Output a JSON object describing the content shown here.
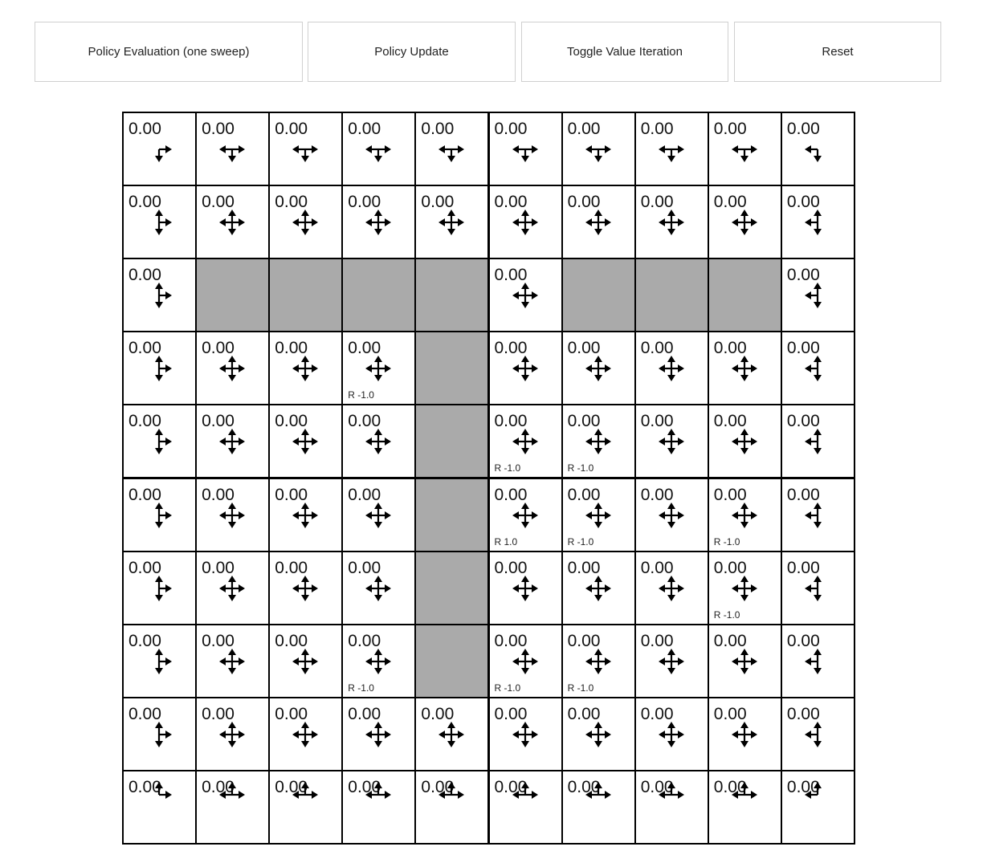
{
  "toolbar": {
    "policy_evaluation": "Policy Evaluation (one sweep)",
    "policy_update": "Policy Update",
    "toggle_value_iteration": "Toggle Value Iteration",
    "reset": "Reset"
  },
  "grid": {
    "rows": 10,
    "cols": 10,
    "wall_color": "#aaaaaa",
    "cells": [
      [
        {
          "v": "0.00"
        },
        {
          "v": "0.00"
        },
        {
          "v": "0.00"
        },
        {
          "v": "0.00"
        },
        {
          "v": "0.00"
        },
        {
          "v": "0.00"
        },
        {
          "v": "0.00"
        },
        {
          "v": "0.00"
        },
        {
          "v": "0.00"
        },
        {
          "v": "0.00"
        }
      ],
      [
        {
          "v": "0.00"
        },
        {
          "v": "0.00"
        },
        {
          "v": "0.00"
        },
        {
          "v": "0.00"
        },
        {
          "v": "0.00"
        },
        {
          "v": "0.00"
        },
        {
          "v": "0.00"
        },
        {
          "v": "0.00"
        },
        {
          "v": "0.00"
        },
        {
          "v": "0.00"
        }
      ],
      [
        {
          "v": "0.00"
        },
        {
          "wall": true
        },
        {
          "wall": true
        },
        {
          "wall": true
        },
        {
          "wall": true
        },
        {
          "v": "0.00"
        },
        {
          "wall": true
        },
        {
          "wall": true
        },
        {
          "wall": true
        },
        {
          "v": "0.00"
        }
      ],
      [
        {
          "v": "0.00"
        },
        {
          "v": "0.00"
        },
        {
          "v": "0.00"
        },
        {
          "v": "0.00",
          "r": "R -1.0"
        },
        {
          "wall": true
        },
        {
          "v": "0.00"
        },
        {
          "v": "0.00"
        },
        {
          "v": "0.00"
        },
        {
          "v": "0.00"
        },
        {
          "v": "0.00"
        }
      ],
      [
        {
          "v": "0.00"
        },
        {
          "v": "0.00"
        },
        {
          "v": "0.00"
        },
        {
          "v": "0.00"
        },
        {
          "wall": true
        },
        {
          "v": "0.00",
          "r": "R -1.0"
        },
        {
          "v": "0.00",
          "r": "R -1.0"
        },
        {
          "v": "0.00"
        },
        {
          "v": "0.00"
        },
        {
          "v": "0.00"
        }
      ],
      [
        {
          "v": "0.00"
        },
        {
          "v": "0.00"
        },
        {
          "v": "0.00"
        },
        {
          "v": "0.00"
        },
        {
          "wall": true
        },
        {
          "v": "0.00",
          "r": "R 1.0"
        },
        {
          "v": "0.00",
          "r": "R -1.0"
        },
        {
          "v": "0.00"
        },
        {
          "v": "0.00",
          "r": "R -1.0"
        },
        {
          "v": "0.00"
        }
      ],
      [
        {
          "v": "0.00"
        },
        {
          "v": "0.00"
        },
        {
          "v": "0.00"
        },
        {
          "v": "0.00"
        },
        {
          "wall": true
        },
        {
          "v": "0.00"
        },
        {
          "v": "0.00"
        },
        {
          "v": "0.00"
        },
        {
          "v": "0.00",
          "r": "R -1.0"
        },
        {
          "v": "0.00"
        }
      ],
      [
        {
          "v": "0.00"
        },
        {
          "v": "0.00"
        },
        {
          "v": "0.00"
        },
        {
          "v": "0.00",
          "r": "R -1.0"
        },
        {
          "wall": true
        },
        {
          "v": "0.00",
          "r": "R -1.0"
        },
        {
          "v": "0.00",
          "r": "R -1.0"
        },
        {
          "v": "0.00"
        },
        {
          "v": "0.00"
        },
        {
          "v": "0.00"
        }
      ],
      [
        {
          "v": "0.00"
        },
        {
          "v": "0.00"
        },
        {
          "v": "0.00"
        },
        {
          "v": "0.00"
        },
        {
          "v": "0.00"
        },
        {
          "v": "0.00"
        },
        {
          "v": "0.00"
        },
        {
          "v": "0.00"
        },
        {
          "v": "0.00"
        },
        {
          "v": "0.00"
        }
      ],
      [
        {
          "v": "0.00"
        },
        {
          "v": "0.00"
        },
        {
          "v": "0.00"
        },
        {
          "v": "0.00"
        },
        {
          "v": "0.00"
        },
        {
          "v": "0.00"
        },
        {
          "v": "0.00"
        },
        {
          "v": "0.00"
        },
        {
          "v": "0.00"
        },
        {
          "v": "0.00"
        }
      ]
    ]
  }
}
